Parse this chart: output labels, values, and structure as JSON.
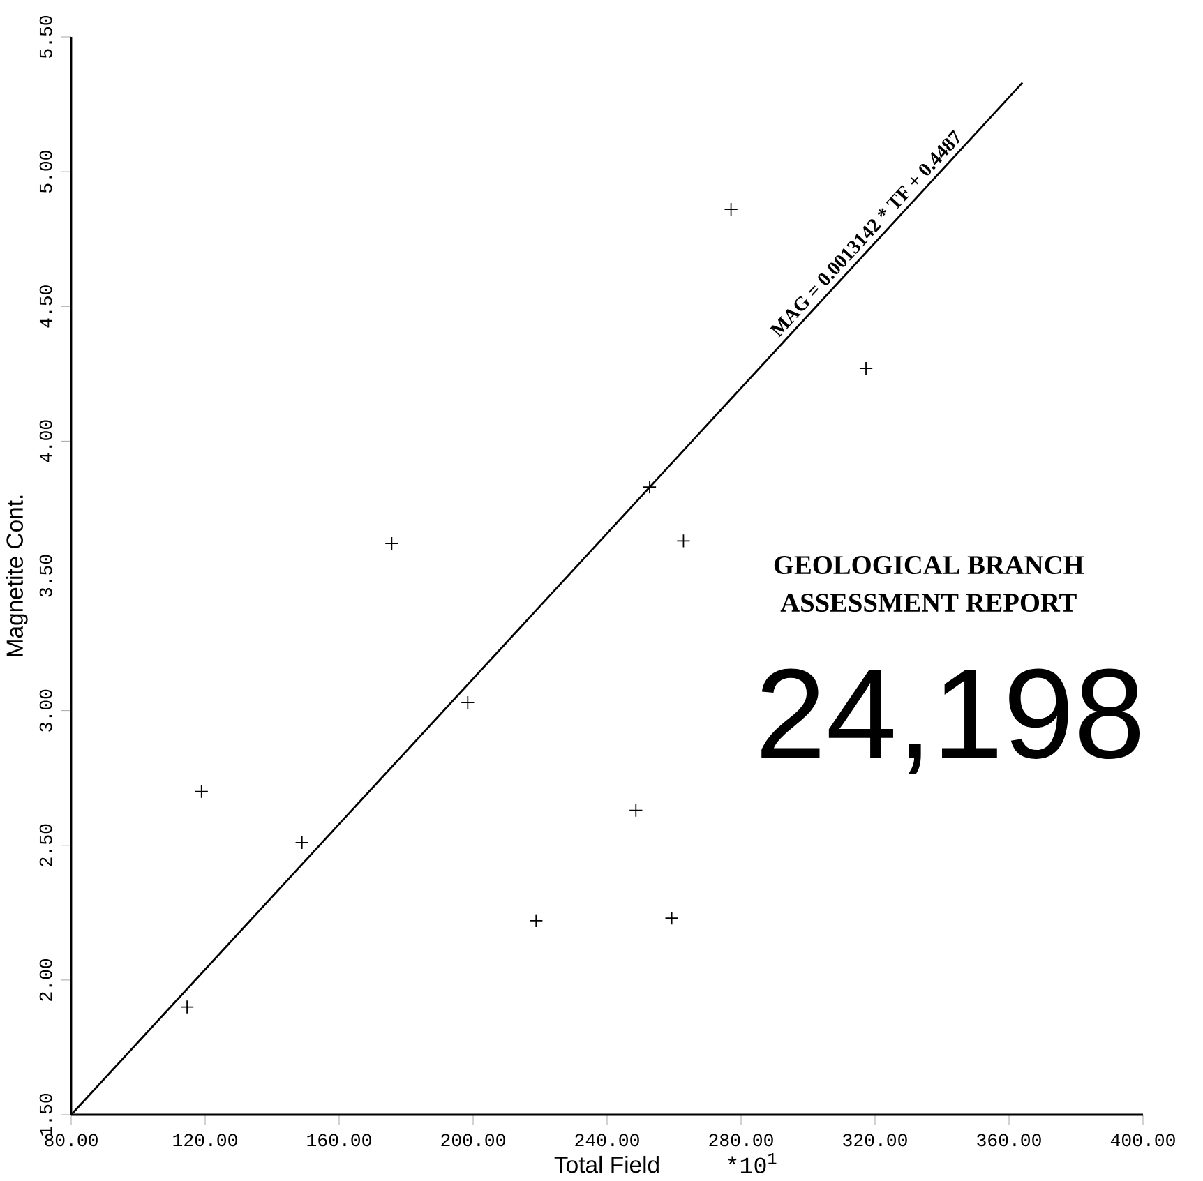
{
  "chart_data": {
    "type": "scatter",
    "xlabel": "Total Field",
    "ylabel": "Magnetite Cont.",
    "xlim": [
      80,
      400
    ],
    "ylim": [
      1.5,
      5.5
    ],
    "xticks": [
      {
        "value": 80,
        "label": "80.00"
      },
      {
        "value": 120,
        "label": "120.00"
      },
      {
        "value": 160,
        "label": "160.00"
      },
      {
        "value": 200,
        "label": "200.00"
      },
      {
        "value": 240,
        "label": "240.00"
      },
      {
        "value": 280,
        "label": "280.00"
      },
      {
        "value": 320,
        "label": "320.00"
      },
      {
        "value": 360,
        "label": "360.00"
      },
      {
        "value": 400,
        "label": "400.00"
      }
    ],
    "yticks": [
      {
        "value": 1.5,
        "label": "1.50"
      },
      {
        "value": 2.0,
        "label": "2.00"
      },
      {
        "value": 2.5,
        "label": "2.50"
      },
      {
        "value": 3.0,
        "label": "3.00"
      },
      {
        "value": 3.5,
        "label": "3.50"
      },
      {
        "value": 4.0,
        "label": "4.00"
      },
      {
        "value": 4.5,
        "label": "4.50"
      },
      {
        "value": 5.0,
        "label": "5.00"
      },
      {
        "value": 5.5,
        "label": "5.50"
      }
    ],
    "grid": false,
    "series": [
      {
        "marker": "cross",
        "color": "#000000",
        "x": [
          114.6,
          118.9,
          148.9,
          175.7,
          198.4,
          218.8,
          248.6,
          252.7,
          259.3,
          262.8,
          277.0,
          317.3
        ],
        "values": [
          1.9,
          2.7,
          2.51,
          3.62,
          3.03,
          2.22,
          2.63,
          3.83,
          2.23,
          3.63,
          4.86,
          4.27
        ]
      },
      {
        "type": "line",
        "color": "#000000",
        "x": [
          80,
          364
        ],
        "values": [
          1.5,
          5.33
        ]
      }
    ],
    "annotations": [
      {
        "text": "MAG = 0.0013142 * TF + 0.4487",
        "x": 320,
        "y": 4.74
      },
      "*10$^{1}$",
      "GEOLOGICAL BRANCH",
      "ASSESSMENT REPORT",
      "24,198"
    ]
  }
}
